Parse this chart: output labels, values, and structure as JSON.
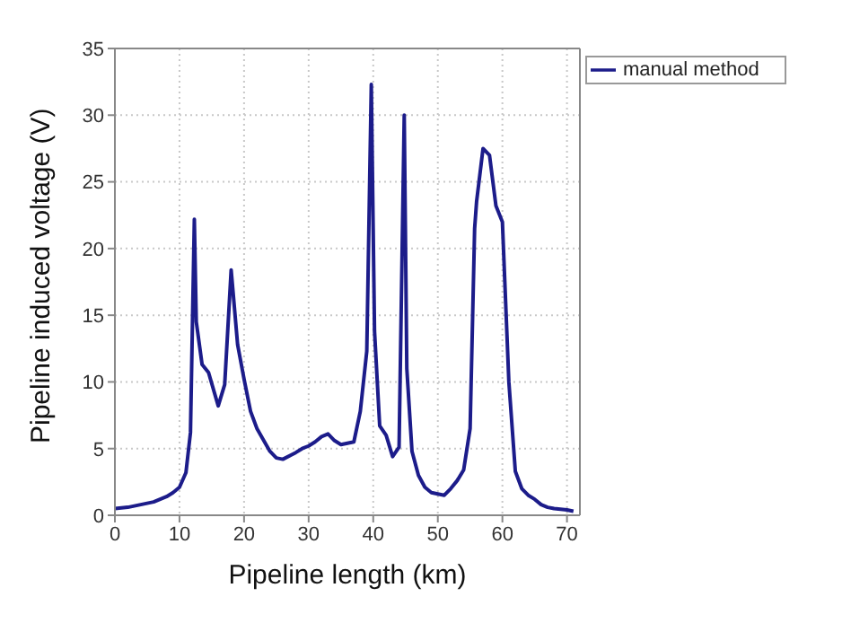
{
  "chart_data": {
    "type": "line",
    "xlabel": "Pipeline length (km)",
    "ylabel": "Pipeline induced voltage (V)",
    "x": [
      0,
      2,
      4,
      6,
      8,
      9,
      10,
      11,
      11.7,
      12.3,
      12.6,
      13.5,
      14.5,
      16,
      17,
      18,
      19,
      20,
      21,
      22,
      24,
      25,
      26,
      28,
      29,
      30,
      31,
      32,
      33,
      34,
      35,
      37,
      38,
      39,
      39.7,
      40.2,
      41,
      42,
      43,
      44,
      44.8,
      45.2,
      46,
      47,
      48,
      49,
      51,
      52,
      53,
      54,
      55,
      55.7,
      56,
      57,
      58,
      59,
      60,
      61,
      62,
      63,
      64,
      65,
      66,
      67,
      68,
      70,
      71
    ],
    "series": [
      {
        "name": "manual method",
        "color": "#1c1c8a",
        "values": [
          0.5,
          0.6,
          0.8,
          1.0,
          1.4,
          1.7,
          2.1,
          3.2,
          6.2,
          22.2,
          14.5,
          11.3,
          10.7,
          8.2,
          9.8,
          18.4,
          12.8,
          10.2,
          7.8,
          6.5,
          4.8,
          4.3,
          4.2,
          4.7,
          5.0,
          5.2,
          5.5,
          5.9,
          6.1,
          5.6,
          5.3,
          5.5,
          7.8,
          12.3,
          32.3,
          13.8,
          6.7,
          6.0,
          4.4,
          5.1,
          30.0,
          11.0,
          4.8,
          3.0,
          2.1,
          1.7,
          1.5,
          2.0,
          2.6,
          3.4,
          6.5,
          21.5,
          23.5,
          27.5,
          27.0,
          23.2,
          22.0,
          10.0,
          3.3,
          2.0,
          1.5,
          1.2,
          0.8,
          0.6,
          0.5,
          0.4,
          0.3
        ]
      }
    ],
    "xlim": [
      0,
      72
    ],
    "xticks": [
      0,
      10,
      20,
      30,
      40,
      50,
      60,
      70
    ],
    "ylim": [
      0,
      35
    ],
    "yticks": [
      0,
      5,
      10,
      15,
      20,
      25,
      30,
      35
    ],
    "grid": true,
    "legend": "top right",
    "marker": "none",
    "line_style": "solid"
  }
}
